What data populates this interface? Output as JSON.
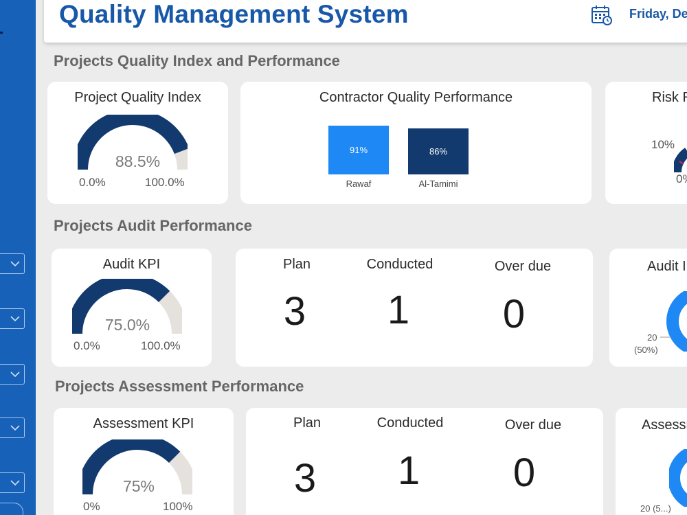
{
  "header": {
    "title": "Quality Management System",
    "date": "Friday, De"
  },
  "sections": {
    "quality": "Projects Quality Index and Performance",
    "audit": "Projects Audit Performance",
    "assessment": "Projects Assessment  Performance"
  },
  "quality_index": {
    "title": "Project Quality Index",
    "value_label": "88.5%",
    "value": 0.885,
    "min": "0.0%",
    "max": "100.0%"
  },
  "contractor_chart": {
    "title": "Contractor Quality Performance",
    "chart_data": {
      "type": "bar",
      "categories": [
        "Rawaf",
        "Al-Tamimi"
      ],
      "values": [
        91,
        86
      ],
      "value_labels": [
        "91%",
        "86%"
      ],
      "colors": [
        "#1e88f5",
        "#123a6e"
      ]
    }
  },
  "risk_card": {
    "title": "Risk R",
    "tick_label": "10%",
    "min": "0%"
  },
  "audit_kpi": {
    "title": "Audit KPI",
    "value_label": "75.0%",
    "value": 0.75,
    "min": "0.0%",
    "max": "100.0%"
  },
  "audit_stats": {
    "plan_label": "Plan",
    "plan_value": "3",
    "conducted_label": "Conducted",
    "conducted_value": "1",
    "overdue_label": "Over due",
    "overdue_value": "0"
  },
  "audit_donut": {
    "title": "Audit I",
    "count": "20",
    "pct": "(50%)"
  },
  "assessment_kpi": {
    "title": "Assessment KPI",
    "value_label": "75%",
    "value": 0.75,
    "min": "0%",
    "max": "100%"
  },
  "assessment_stats": {
    "plan_label": "Plan",
    "plan_value": "3",
    "conducted_label": "Conducted",
    "conducted_value": "1",
    "overdue_label": "Over due",
    "overdue_value": "0"
  },
  "assessment_donut": {
    "title": "Assessn",
    "label": "20 (5...)"
  },
  "colors": {
    "accent": "#1858a8",
    "gauge_fill": "#123a6e",
    "gauge_track": "#e5e1dc",
    "donut": "#1e88f5",
    "sidebar": "#1761b8"
  }
}
